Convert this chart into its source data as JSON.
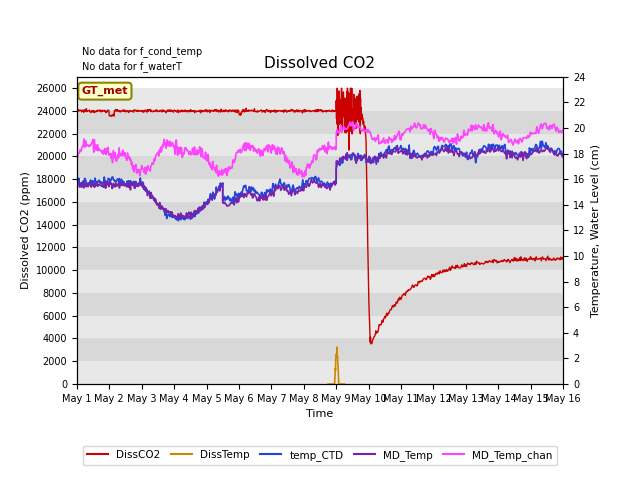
{
  "title": "Dissolved CO2",
  "xlabel": "Time",
  "ylabel_left": "Dissolved CO2 (ppm)",
  "ylabel_right": "Temperature, Water Level (cm)",
  "annotations": [
    "No data for f_cond_temp",
    "No data for f_waterT"
  ],
  "box_label": "GT_met",
  "ylim_left": [
    0,
    27000
  ],
  "ylim_right": [
    0,
    24
  ],
  "yticks_left": [
    0,
    2000,
    4000,
    6000,
    8000,
    10000,
    12000,
    14000,
    16000,
    18000,
    20000,
    22000,
    24000,
    26000
  ],
  "yticks_right": [
    0,
    2,
    4,
    6,
    8,
    10,
    12,
    14,
    16,
    18,
    20,
    22,
    24
  ],
  "xtick_labels": [
    "May 1",
    "May 2",
    "May 3",
    "May 4",
    "May 5",
    "May 6",
    "May 7",
    "May 8",
    "May 9",
    "May 10",
    "May 11",
    "May 12",
    "May 13",
    "May 14",
    "May 15",
    "May 16"
  ],
  "colors": {
    "DissCO2": "#cc0000",
    "DissTemp": "#cc8800",
    "temp_CTD": "#2244dd",
    "MD_Temp": "#7722aa",
    "MD_Temp_chan": "#ff44ff"
  },
  "stripe_colors": [
    "#e8e8e8",
    "#d8d8d8"
  ],
  "background_color": "#ffffff",
  "legend_entries": [
    "DissCO2",
    "DissTemp",
    "temp_CTD",
    "MD_Temp",
    "MD_Temp_chan"
  ]
}
